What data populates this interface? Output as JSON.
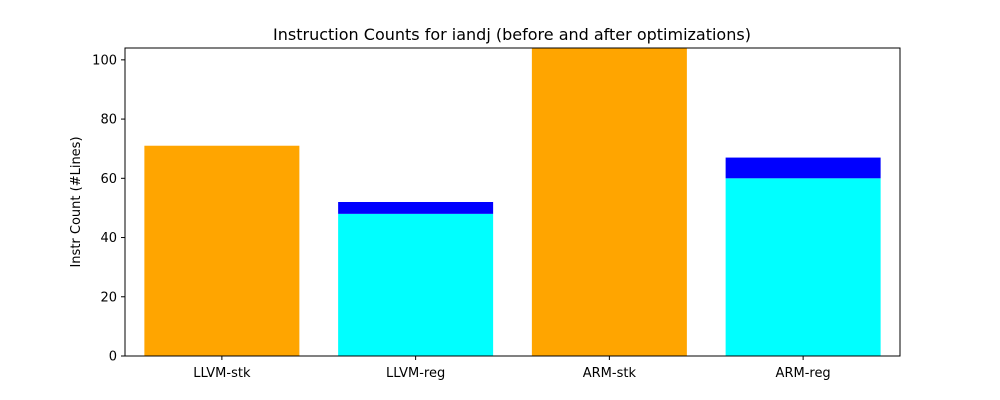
{
  "chart_data": {
    "type": "bar",
    "title": "Instruction Counts for iandj (before and after optimizations)",
    "xlabel": "",
    "ylabel": "Instr Count (#Lines)",
    "categories": [
      "LLVM-stk",
      "LLVM-reg",
      "ARM-stk",
      "ARM-reg"
    ],
    "stacked": true,
    "series": [
      {
        "color": "#ffa500",
        "values": [
          71,
          0,
          104,
          0
        ]
      },
      {
        "color": "#00ffff",
        "values": [
          0,
          48,
          0,
          60
        ]
      },
      {
        "color": "#0000ff",
        "values": [
          0,
          4,
          0,
          7
        ]
      }
    ],
    "ylim": [
      0,
      104
    ],
    "yticks": [
      0,
      20,
      40,
      60,
      80,
      100
    ],
    "grid": false,
    "legend": "none"
  }
}
